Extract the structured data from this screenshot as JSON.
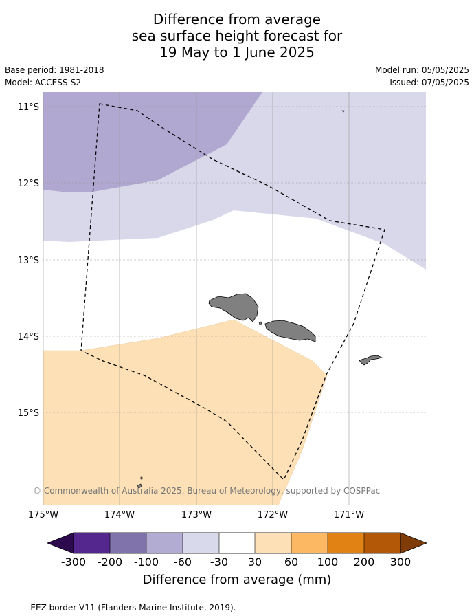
{
  "title": {
    "line1": "Difference from average",
    "line2": "sea surface height forecast for",
    "line3": "19 May to 1 June 2025"
  },
  "meta": {
    "base_period": "Base period: 1981-2018",
    "model": "Model: ACCESS-S2",
    "model_run": "Model run: 05/05/2025",
    "issued": "Issued: 07/05/2025"
  },
  "map": {
    "lat_labels": [
      "11°S",
      "12°S",
      "13°S",
      "14°S",
      "15°S"
    ],
    "lon_labels": [
      "175°W",
      "174°W",
      "173°W",
      "172°W",
      "171°W"
    ],
    "copyright": "© Commonwealth of Australia 2025, Bureau of Meteorology, supported by COSPPac",
    "colors": {
      "n100_60": "#b0a8d0",
      "n60_30": "#d8d8ea",
      "n30_30": "#ffffff",
      "p30_60": "#fde0b5",
      "land": "#808080",
      "grid": "#999999"
    }
  },
  "colorbar": {
    "ticks": [
      "-300",
      "-200",
      "-100",
      "-60",
      "-30",
      "30",
      "60",
      "100",
      "200",
      "300"
    ],
    "colors": [
      "#2d0a4e",
      "#54278f",
      "#8073ac",
      "#b2abd2",
      "#d8daeb",
      "#ffffff",
      "#fee0b6",
      "#fdb863",
      "#e08214",
      "#b35806",
      "#7f3b08"
    ],
    "label": "Difference from average (mm)"
  },
  "footnote": "--  --  -- EEZ border V11 (Flanders Marine Institute, 2019)."
}
